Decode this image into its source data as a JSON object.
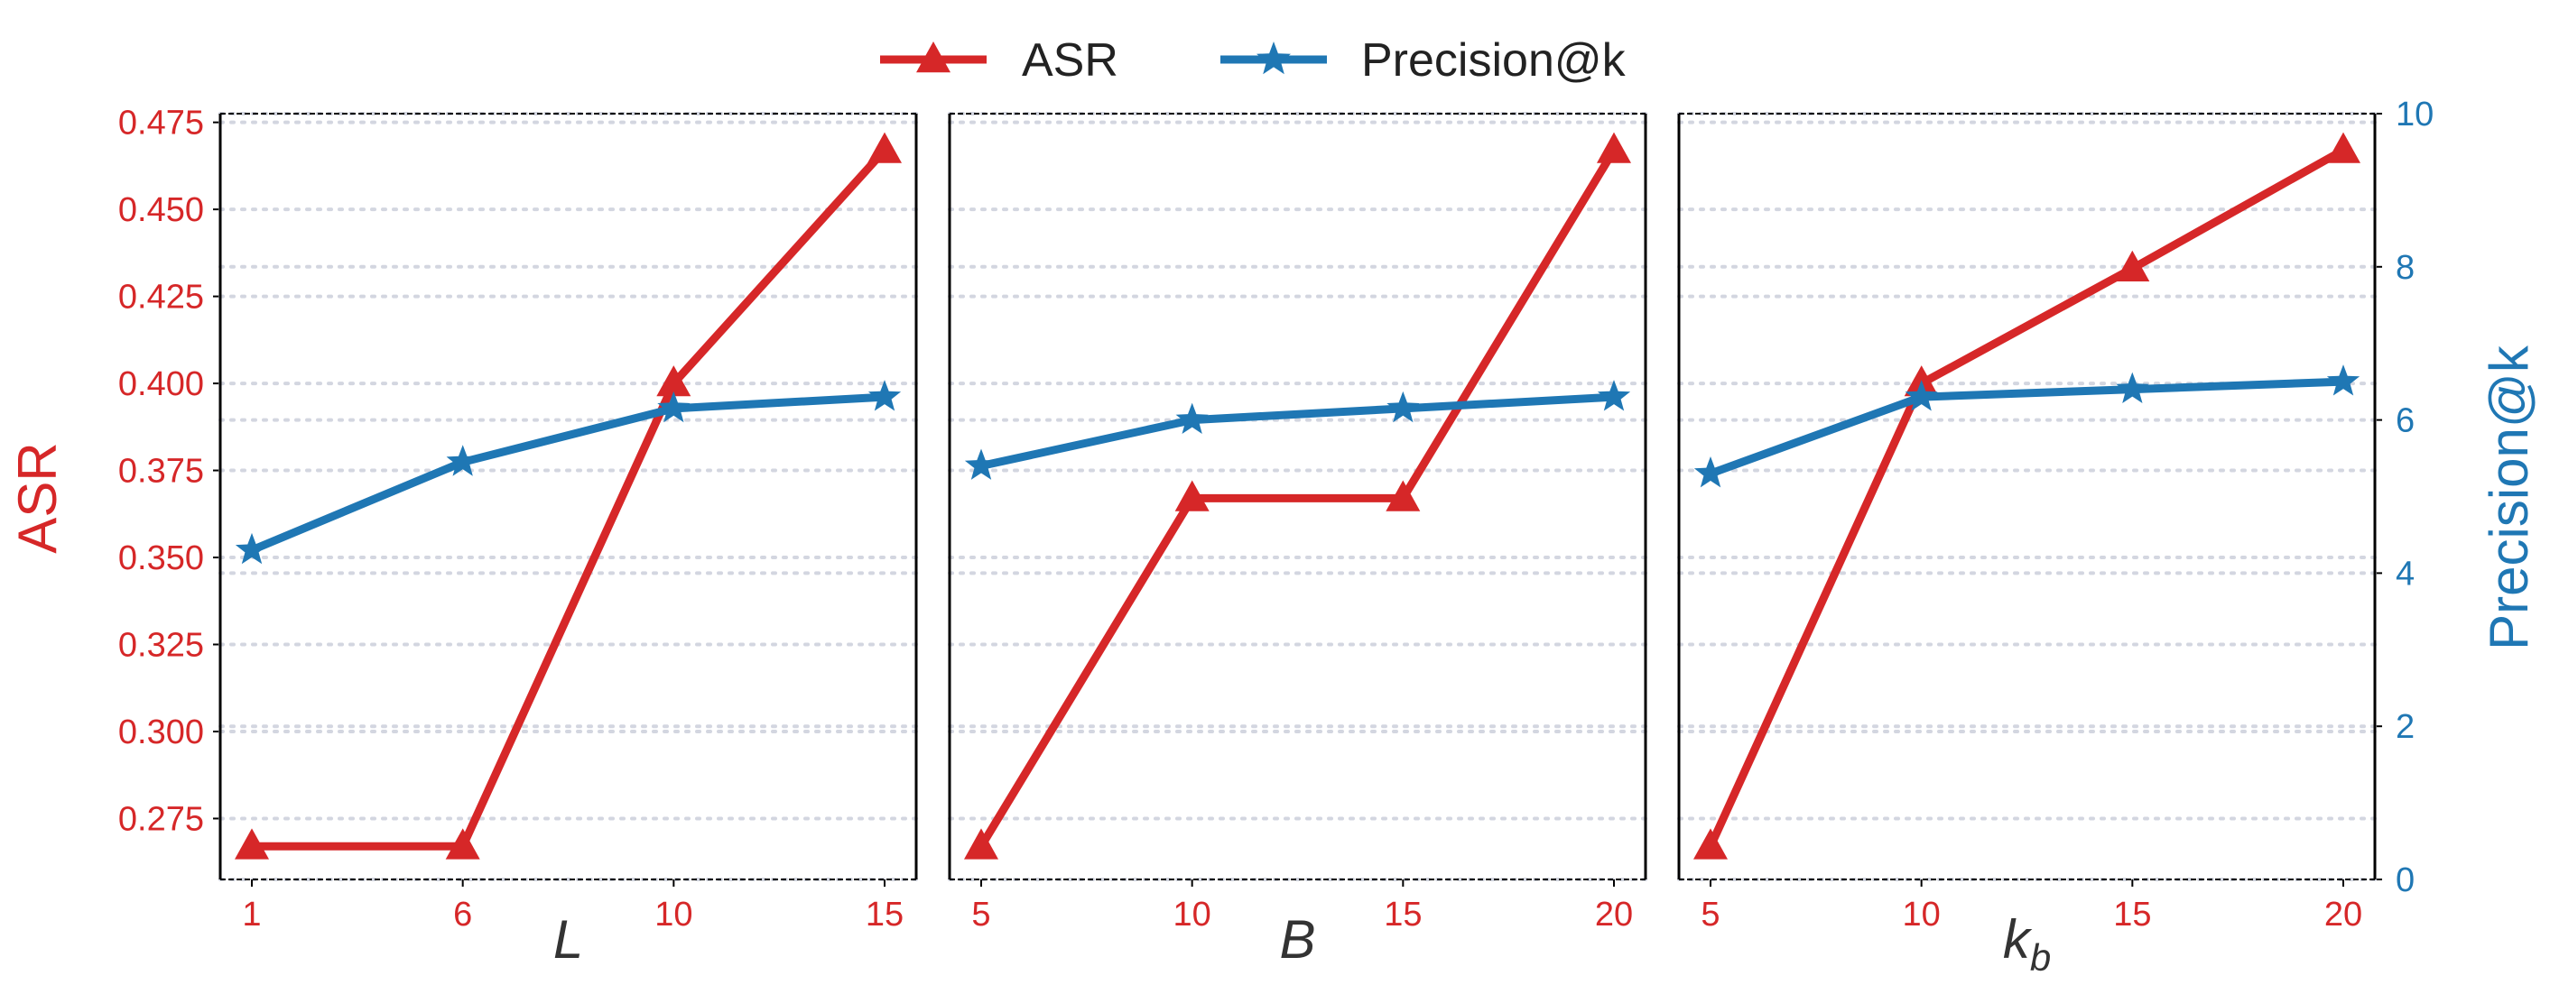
{
  "colors": {
    "asr": "#d62728",
    "precision": "#1f77b4",
    "grid": "#d3d6e0",
    "frame": "#000000"
  },
  "chart_data": {
    "type": "line",
    "legend": {
      "placement": "top-center",
      "entries": [
        "ASR",
        "Precision@k"
      ]
    },
    "left_axis": {
      "label": "ASR",
      "ylim": [
        0.2575,
        0.4775
      ],
      "ticks": [
        0.275,
        0.3,
        0.325,
        0.35,
        0.375,
        0.4,
        0.425,
        0.45,
        0.475
      ],
      "tick_labels": [
        "0.275",
        "0.300",
        "0.325",
        "0.350",
        "0.375",
        "0.400",
        "0.425",
        "0.450",
        "0.475"
      ]
    },
    "right_axis": {
      "label": "Precision@k",
      "ylim": [
        0,
        10
      ],
      "ticks": [
        0,
        2,
        4,
        6,
        8,
        10
      ],
      "tick_labels": [
        "0",
        "2",
        "4",
        "6",
        "8",
        "10"
      ]
    },
    "grid": true,
    "panels": [
      {
        "xlabel": "L",
        "xlabel_sub": "",
        "categories": [
          "1",
          "6",
          "10",
          "15"
        ],
        "series": [
          {
            "name": "ASR",
            "axis": "left",
            "marker": "triangle",
            "values": [
              0.267,
              0.267,
              0.4,
              0.467
            ]
          },
          {
            "name": "Precision@k",
            "axis": "right",
            "marker": "star",
            "values": [
              4.3,
              5.45,
              6.15,
              6.3
            ]
          }
        ]
      },
      {
        "xlabel": "B",
        "xlabel_sub": "",
        "categories": [
          "5",
          "10",
          "15",
          "20"
        ],
        "series": [
          {
            "name": "ASR",
            "axis": "left",
            "marker": "triangle",
            "values": [
              0.267,
              0.367,
              0.367,
              0.467
            ]
          },
          {
            "name": "Precision@k",
            "axis": "right",
            "marker": "star",
            "values": [
              5.4,
              6.0,
              6.15,
              6.3
            ]
          }
        ]
      },
      {
        "xlabel": "k",
        "xlabel_sub": "b",
        "categories": [
          "5",
          "10",
          "15",
          "20"
        ],
        "series": [
          {
            "name": "ASR",
            "axis": "left",
            "marker": "triangle",
            "values": [
              0.267,
              0.4,
              0.433,
              0.467
            ]
          },
          {
            "name": "Precision@k",
            "axis": "right",
            "marker": "star",
            "values": [
              5.3,
              6.3,
              6.4,
              6.5
            ]
          }
        ]
      }
    ]
  }
}
